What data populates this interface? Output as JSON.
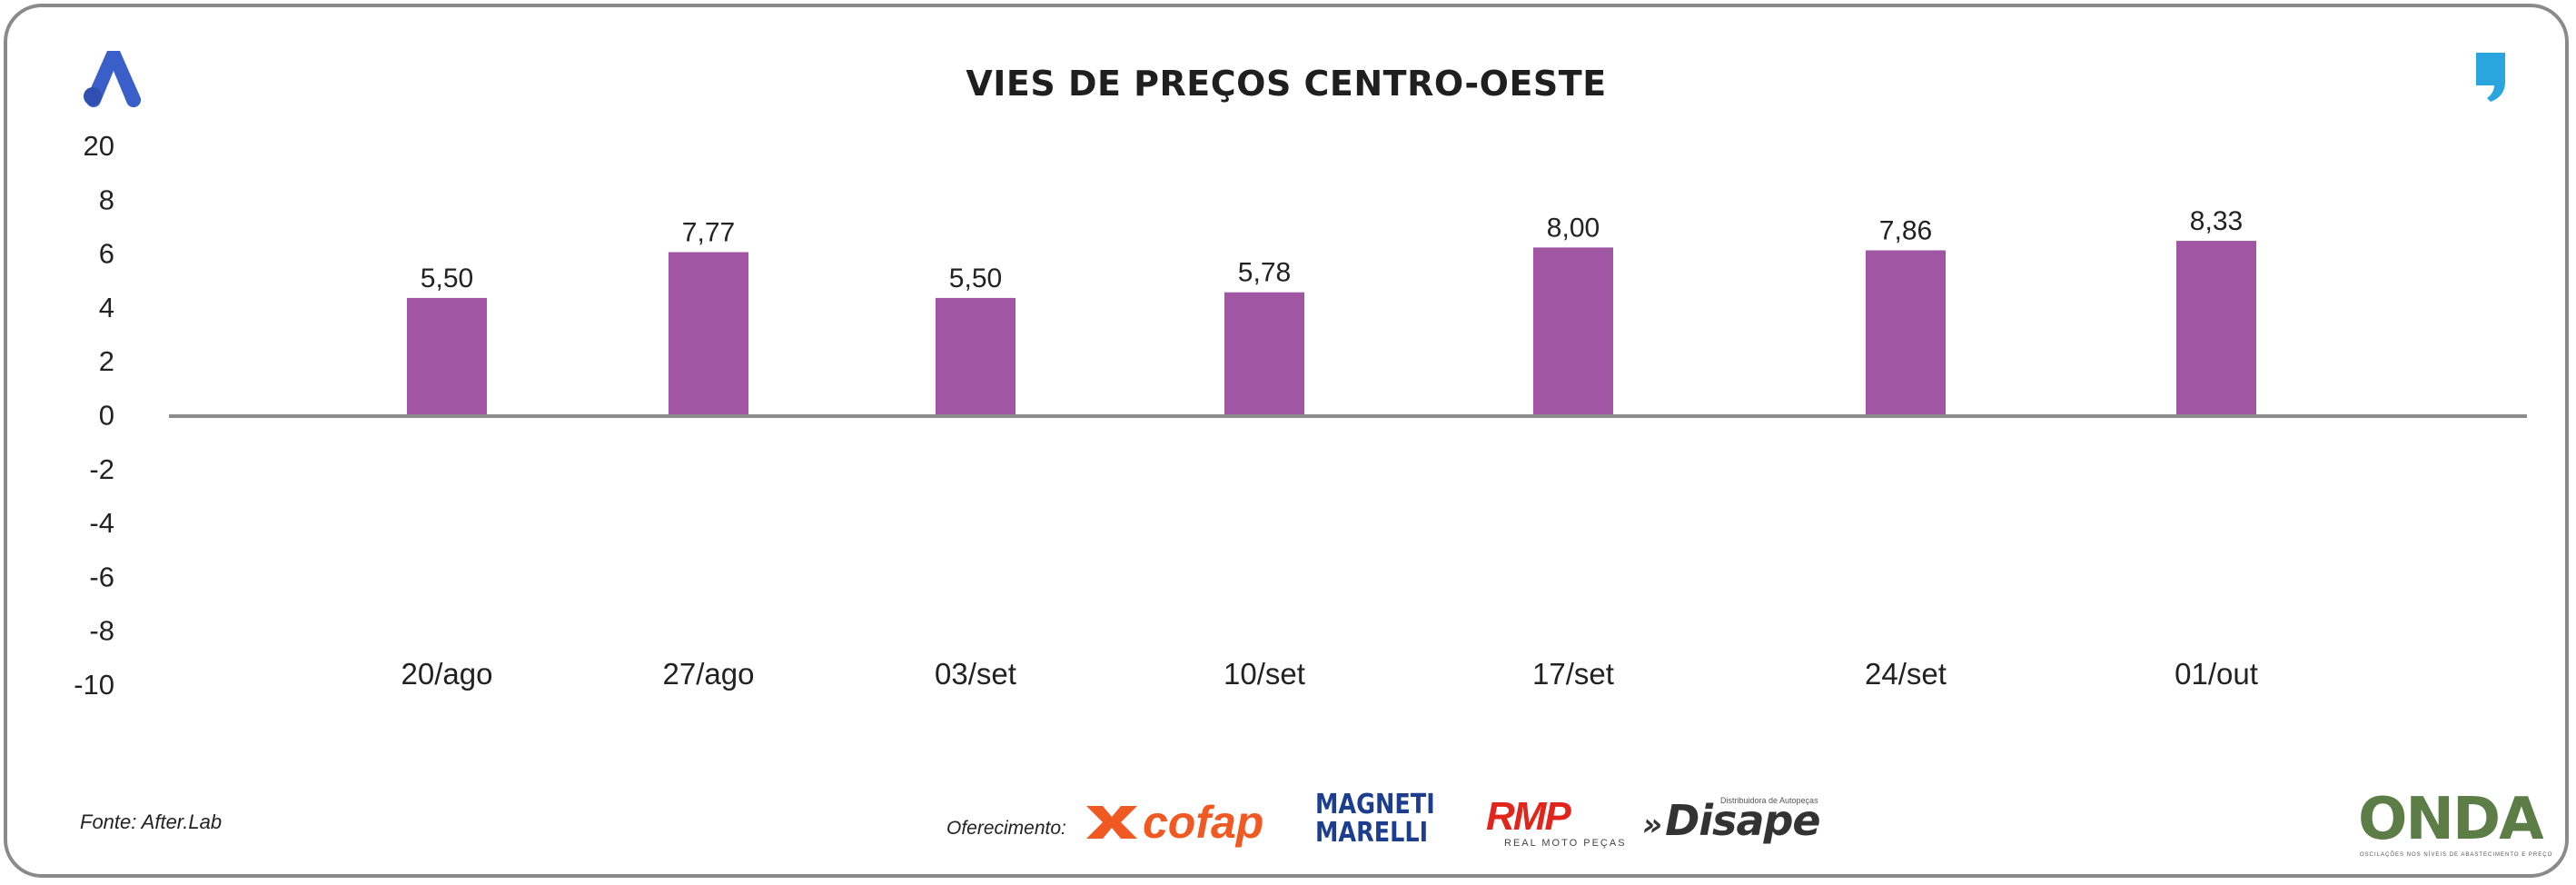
{
  "title": "VIES DE PREÇOS CENTRO-OESTE",
  "source": "Fonte: After.Lab",
  "sponsor_label": "Oferecimento:",
  "sponsors": {
    "cofap": "cofap",
    "magneti_line1": "MAGNETI",
    "magneti_line2": "MARELLI",
    "rmp": "RMP",
    "rmp_sub": "REAL MOTO PEÇAS",
    "disape": "Disape",
    "disape_sub": "Distribuidora de Autopeças"
  },
  "brand": {
    "onda": "ONDA",
    "onda_sub": "OSCILAÇÕES NOS NÍVEIS DE ABASTECIMENTO E PREÇO"
  },
  "colors": {
    "bar": "#a056a3",
    "axis": "#8c8c8c",
    "logo_a": "#3a5fc8",
    "logo_comma": "#29a6dd"
  },
  "icons": {
    "top_left": "logo-a-icon",
    "top_right": "logo-comma-icon"
  },
  "chart_data": {
    "type": "bar",
    "categories": [
      "20/ago",
      "27/ago",
      "03/set",
      "10/set",
      "17/set",
      "24/set",
      "01/out"
    ],
    "values": [
      5.5,
      7.77,
      5.5,
      5.78,
      8.0,
      7.86,
      8.33
    ],
    "data_labels": [
      "5,50",
      "7,77",
      "5,50",
      "5,78",
      "8,00",
      "7,86",
      "8,33"
    ],
    "y_ticks": [
      20,
      8,
      6,
      4,
      2,
      0,
      -2,
      -4,
      -6,
      -8,
      -10
    ],
    "y_tick_labels": [
      "20",
      "8",
      "6",
      "4",
      "2",
      "0",
      "-2",
      "-4",
      "-6",
      "-8",
      "-10"
    ],
    "ylim": [
      -10,
      20
    ],
    "grid": false,
    "legend": "none"
  }
}
